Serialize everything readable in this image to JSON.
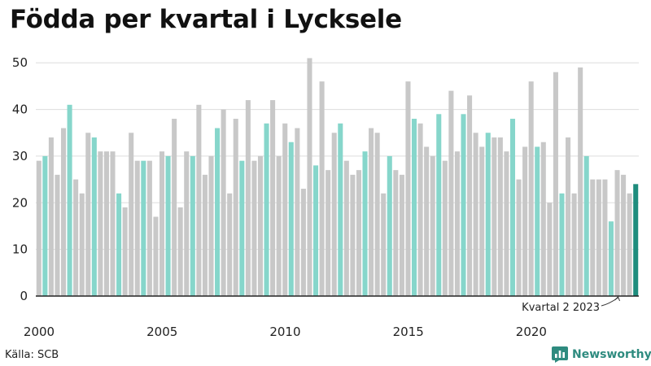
{
  "title": "Födda per kvartal i Lycksele",
  "source": "Källa: SCB",
  "brand": {
    "name": "Newsworthy",
    "icon": "bar-chart-logo-icon",
    "color": "#2e8b7f"
  },
  "annotation": {
    "text": "Kvartal 2 2023"
  },
  "colors": {
    "grey": "#c8c8c8",
    "q2": "#86d6cb",
    "latest": "#1e8c7d",
    "grid": "#dddddd",
    "axis": "#222222"
  },
  "chart_data": {
    "type": "bar",
    "title": "Födda per kvartal i Lycksele",
    "xlabel": "",
    "ylabel": "",
    "ylim": [
      0,
      53
    ],
    "y_ticks": [
      0,
      10,
      20,
      30,
      40,
      50
    ],
    "x_ticks": [
      "2000",
      "2005",
      "2010",
      "2015",
      "2020"
    ],
    "grid": true,
    "highlight": "Kvartal 2 highlighted; latest bar (Kvartal 2 2023) dark",
    "series": [
      {
        "values": [
          29,
          30,
          34,
          26,
          36,
          41,
          25,
          22,
          35,
          34,
          31,
          31,
          31,
          22,
          19,
          35,
          29,
          29,
          29,
          17,
          31,
          30,
          38,
          19,
          31,
          30,
          41,
          26,
          30,
          36,
          40,
          22,
          38,
          29,
          42,
          29,
          30,
          37,
          42,
          30,
          37,
          33,
          36,
          23,
          51,
          28,
          46,
          27,
          35,
          37,
          29,
          26,
          27,
          31,
          36,
          35,
          22,
          30,
          27,
          26,
          46,
          38,
          37,
          32,
          30,
          39,
          29,
          44,
          31,
          39,
          43,
          35,
          32,
          35,
          34,
          34,
          31,
          38,
          25,
          32,
          46,
          32,
          33,
          20,
          48,
          22,
          34,
          22,
          49,
          30,
          25,
          25,
          25,
          16,
          27,
          26,
          22,
          24
        ]
      }
    ]
  }
}
